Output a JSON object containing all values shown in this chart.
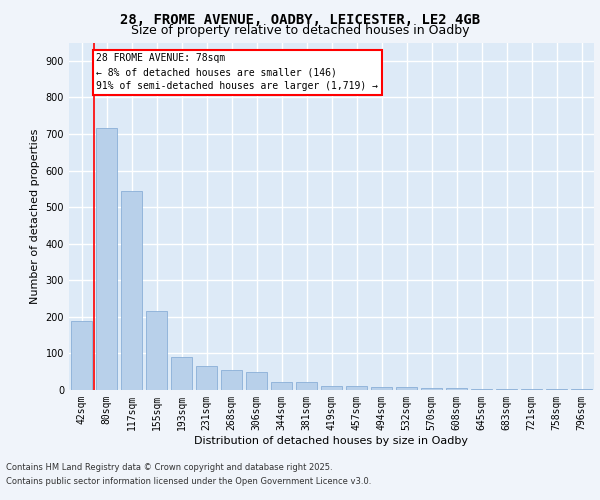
{
  "title1": "28, FROME AVENUE, OADBY, LEICESTER, LE2 4GB",
  "title2": "Size of property relative to detached houses in Oadby",
  "xlabel": "Distribution of detached houses by size in Oadby",
  "ylabel": "Number of detached properties",
  "categories": [
    "42sqm",
    "80sqm",
    "117sqm",
    "155sqm",
    "193sqm",
    "231sqm",
    "268sqm",
    "306sqm",
    "344sqm",
    "381sqm",
    "419sqm",
    "457sqm",
    "494sqm",
    "532sqm",
    "570sqm",
    "608sqm",
    "645sqm",
    "683sqm",
    "721sqm",
    "758sqm",
    "796sqm"
  ],
  "values": [
    190,
    715,
    545,
    215,
    90,
    65,
    55,
    50,
    22,
    22,
    10,
    10,
    8,
    7,
    5,
    5,
    4,
    4,
    4,
    4,
    4
  ],
  "bar_color": "#b8d0ea",
  "bar_edge_color": "#8aafd8",
  "annotation_text": "28 FROME AVENUE: 78sqm\n← 8% of detached houses are smaller (146)\n91% of semi-detached houses are larger (1,719) →",
  "red_line_x": 0.5,
  "ylim": [
    0,
    950
  ],
  "yticks": [
    0,
    100,
    200,
    300,
    400,
    500,
    600,
    700,
    800,
    900
  ],
  "bg_color": "#ddeaf7",
  "grid_color": "#ffffff",
  "footer_line1": "Contains HM Land Registry data © Crown copyright and database right 2025.",
  "footer_line2": "Contains public sector information licensed under the Open Government Licence v3.0.",
  "fig_bg": "#f0f4fa",
  "title1_fontsize": 10,
  "title2_fontsize": 9,
  "ylabel_fontsize": 8,
  "xlabel_fontsize": 8,
  "tick_fontsize": 7,
  "ann_fontsize": 7,
  "footer_fontsize": 6
}
